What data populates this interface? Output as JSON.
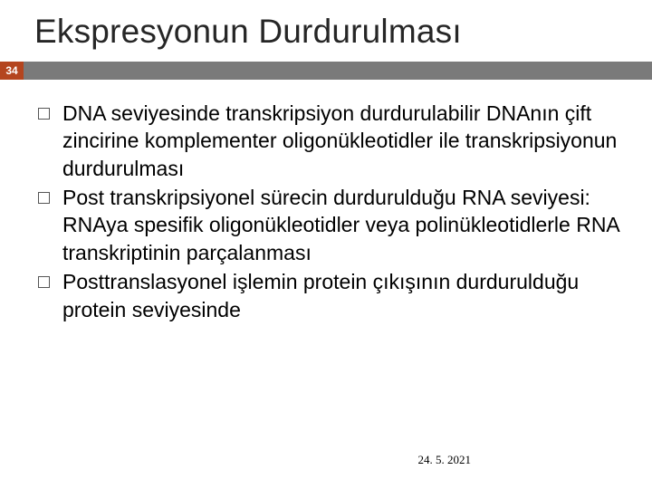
{
  "slide": {
    "title": "Ekspresyonun Durdurulması",
    "number": "34",
    "date": "24. 5. 2021",
    "bullets": [
      "DNA seviyesinde transkripsiyon durdurulabilir DNAnın çift zincirine komplementer oligonükleotidler ile transkripsiyonun durdurulması",
      "Post transkripsiyonel sürecin durdurulduğu  RNA seviyesi: RNAya spesifik oligonükleotidler veya polinükleotidlerle RNA transkriptinin parçalanması",
      "Posttranslasyonel işlemin protein çıkışının durdurulduğu protein seviyesinde"
    ]
  },
  "colors": {
    "badge_bg": "#b4451f",
    "bar_bg": "#7a7a7a",
    "title_color": "#262626",
    "text_color": "#000000",
    "bullet_border": "#555555"
  }
}
